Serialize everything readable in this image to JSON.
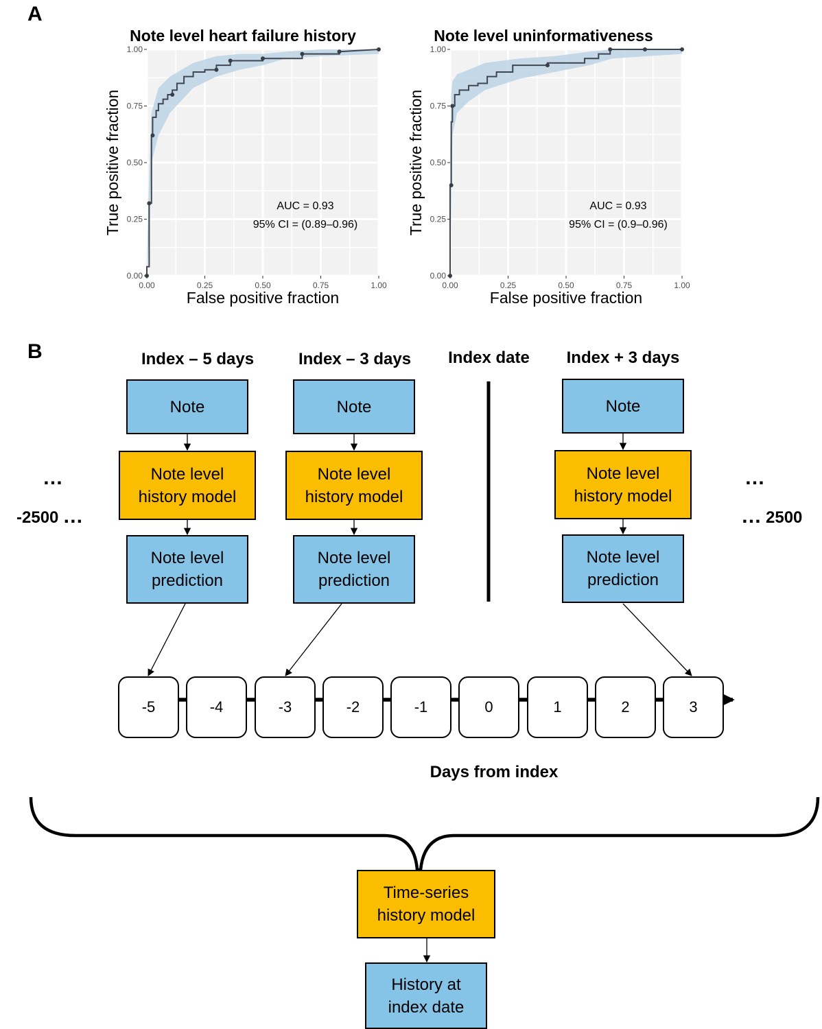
{
  "panel_a": {
    "letter": "A"
  },
  "panel_b": {
    "letter": "B"
  },
  "chart_data": [
    {
      "type": "line",
      "title": "Note level heart failure history",
      "xlabel": "False positive fraction",
      "ylabel": "True positive fraction",
      "xlim": [
        0,
        1
      ],
      "ylim": [
        0,
        1
      ],
      "xticks": [
        "0.00",
        "0.25",
        "0.50",
        "0.75",
        "1.00"
      ],
      "yticks": [
        "0.00",
        "0.25",
        "0.50",
        "0.75",
        "1.00"
      ],
      "grid": true,
      "annotation": {
        "auc": "AUC = 0.93",
        "ci": "95% CI = (0.89–0.96)"
      },
      "series": [
        {
          "x": [
            0,
            0,
            0.01,
            0.01,
            0.02,
            0.02,
            0.025,
            0.025,
            0.04,
            0.04,
            0.05,
            0.05,
            0.07,
            0.07,
            0.09,
            0.09,
            0.11,
            0.11,
            0.13,
            0.13,
            0.16,
            0.16,
            0.2,
            0.2,
            0.25,
            0.25,
            0.3,
            0.3,
            0.36,
            0.36,
            0.5,
            0.5,
            0.67,
            0.67,
            0.83,
            0.83,
            1.0
          ],
          "y": [
            0,
            0.04,
            0.04,
            0.32,
            0.32,
            0.62,
            0.62,
            0.7,
            0.7,
            0.73,
            0.73,
            0.76,
            0.76,
            0.78,
            0.78,
            0.8,
            0.8,
            0.82,
            0.82,
            0.85,
            0.85,
            0.88,
            0.88,
            0.9,
            0.9,
            0.91,
            0.91,
            0.93,
            0.93,
            0.95,
            0.95,
            0.96,
            0.96,
            0.98,
            0.98,
            0.99,
            1.0
          ],
          "points_x": [
            0,
            0.01,
            0.025,
            0.11,
            0.3,
            0.36,
            0.5,
            0.67,
            0.83,
            1.0
          ],
          "points_y": [
            0,
            0.32,
            0.62,
            0.8,
            0.91,
            0.95,
            0.96,
            0.98,
            0.99,
            1.0
          ],
          "ci_x": [
            0,
            0.01,
            0.02,
            0.05,
            0.1,
            0.2,
            0.3,
            0.4,
            0.5,
            0.6,
            0.75,
            1.0
          ],
          "ci_upper": [
            0.06,
            0.45,
            0.72,
            0.83,
            0.88,
            0.94,
            0.97,
            0.98,
            0.98,
            0.99,
            1.0,
            1.0
          ],
          "ci_lower": [
            0.0,
            0.2,
            0.5,
            0.62,
            0.72,
            0.83,
            0.88,
            0.91,
            0.93,
            0.96,
            0.97,
            0.98
          ]
        }
      ]
    },
    {
      "type": "line",
      "title": "Note level uninformativeness",
      "xlabel": "False positive fraction",
      "ylabel": "True positive fraction",
      "xlim": [
        0,
        1
      ],
      "ylim": [
        0,
        1
      ],
      "xticks": [
        "0.00",
        "0.25",
        "0.50",
        "0.75",
        "1.00"
      ],
      "yticks": [
        "0.00",
        "0.25",
        "0.50",
        "0.75",
        "1.00"
      ],
      "grid": true,
      "annotation": {
        "auc": "AUC = 0.93",
        "ci": "95% CI = (0.9–0.96)"
      },
      "series": [
        {
          "x": [
            0,
            0,
            0.005,
            0.005,
            0.01,
            0.01,
            0.02,
            0.02,
            0.04,
            0.04,
            0.08,
            0.08,
            0.12,
            0.12,
            0.16,
            0.16,
            0.2,
            0.2,
            0.27,
            0.27,
            0.42,
            0.42,
            0.58,
            0.58,
            0.64,
            0.64,
            0.69,
            0.69,
            1.0
          ],
          "y": [
            0,
            0.4,
            0.4,
            0.68,
            0.68,
            0.75,
            0.75,
            0.8,
            0.8,
            0.82,
            0.82,
            0.84,
            0.84,
            0.85,
            0.85,
            0.88,
            0.88,
            0.9,
            0.9,
            0.93,
            0.93,
            0.94,
            0.94,
            0.96,
            0.96,
            0.98,
            0.98,
            1.0,
            1.0
          ],
          "points_x": [
            0,
            0.005,
            0.01,
            0.42,
            0.69,
            0.84,
            1.0
          ],
          "points_y": [
            0,
            0.4,
            0.75,
            0.93,
            1.0,
            1.0,
            1.0
          ],
          "ci_x": [
            0,
            0.005,
            0.01,
            0.03,
            0.08,
            0.15,
            0.3,
            0.45,
            0.6,
            0.7,
            1.0
          ],
          "ci_upper": [
            0.55,
            0.8,
            0.86,
            0.89,
            0.91,
            0.94,
            0.96,
            0.97,
            0.99,
            1.0,
            1.0
          ],
          "ci_lower": [
            0.0,
            0.3,
            0.62,
            0.72,
            0.77,
            0.82,
            0.87,
            0.9,
            0.93,
            0.96,
            0.98
          ]
        }
      ]
    }
  ],
  "columns": [
    {
      "header": "Index – 5 days",
      "note": "Note",
      "model": "Note level\nhistory model",
      "prediction": "Note level\nprediction"
    },
    {
      "header": "Index – 3 days",
      "note": "Note",
      "model": "Note level\nhistory model",
      "prediction": "Note level\nprediction"
    },
    {
      "header": "Index date"
    },
    {
      "header": "Index + 3 days",
      "note": "Note",
      "model": "Note level\nhistory model",
      "prediction": "Note level\nprediction"
    }
  ],
  "ellipsis": "…",
  "timeline": {
    "start_label": "-2500",
    "end_label": "2500",
    "days": [
      "-5",
      "-4",
      "-3",
      "-2",
      "-1",
      "0",
      "1",
      "2",
      "3"
    ],
    "axis_title": "Days from index"
  },
  "bottom": {
    "model": "Time-series\nhistory model",
    "output": "History at\nindex date"
  },
  "colors": {
    "blue_box": "#85c4e6",
    "orange_box": "#fbbd00",
    "ci_band": "#bcd3e6",
    "roc_line": "#404650"
  }
}
